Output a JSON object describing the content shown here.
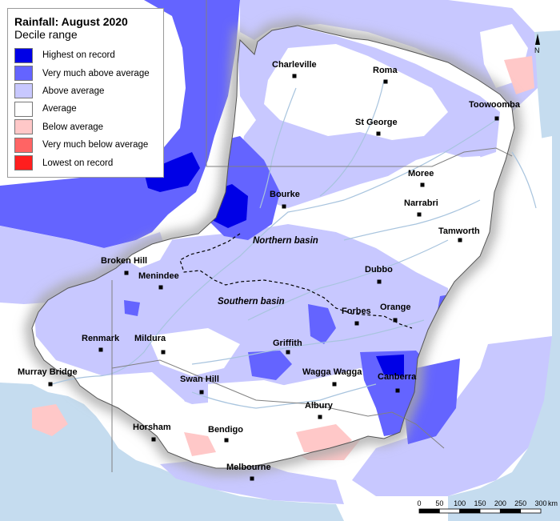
{
  "legend": {
    "title": "Rainfall: August 2020",
    "subtitle": "Decile range",
    "items": [
      {
        "label": "Highest on record",
        "color": "#0000e6"
      },
      {
        "label": "Very much above average",
        "color": "#6464ff"
      },
      {
        "label": "Above average",
        "color": "#c8c8ff"
      },
      {
        "label": "Average",
        "color": "#ffffff"
      },
      {
        "label": "Below average",
        "color": "#ffc8c8"
      },
      {
        "label": "Very much below average",
        "color": "#ff6464"
      },
      {
        "label": "Lowest on record",
        "color": "#ff1e1e"
      }
    ]
  },
  "towns": [
    {
      "name": "Charleville"
    },
    {
      "name": "Roma"
    },
    {
      "name": "Toowoomba"
    },
    {
      "name": "St George"
    },
    {
      "name": "Moree"
    },
    {
      "name": "Bourke"
    },
    {
      "name": "Narrabri"
    },
    {
      "name": "Tamworth"
    },
    {
      "name": "Broken Hill"
    },
    {
      "name": "Menindee"
    },
    {
      "name": "Dubbo"
    },
    {
      "name": "Orange"
    },
    {
      "name": "Forbes"
    },
    {
      "name": "Renmark"
    },
    {
      "name": "Mildura"
    },
    {
      "name": "Griffith"
    },
    {
      "name": "Murray Bridge"
    },
    {
      "name": "Wagga Wagga"
    },
    {
      "name": "Canberra"
    },
    {
      "name": "Swan Hill"
    },
    {
      "name": "Albury"
    },
    {
      "name": "Horsham"
    },
    {
      "name": "Bendigo"
    },
    {
      "name": "Melbourne"
    }
  ],
  "basins": {
    "northern": "Northern basin",
    "southern": "Southern basin"
  },
  "north_arrow": {
    "label": "N"
  },
  "scale_bar": {
    "ticks": [
      "0",
      "50",
      "100",
      "150",
      "200",
      "250",
      "300"
    ],
    "unit": "km"
  },
  "colors": {
    "sea": "#c5dcef",
    "land": "#ffffff",
    "outside_shade": "#e4e4e4",
    "rivers": "#a8c4de"
  }
}
